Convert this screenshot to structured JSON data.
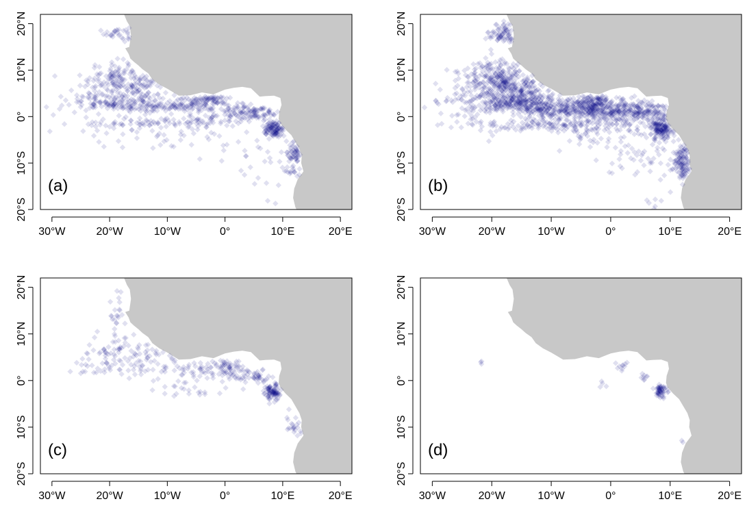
{
  "figure": {
    "colors": {
      "land": "#c8c8c8",
      "ocean": "#ffffff",
      "points": "#000080",
      "axis": "#000000"
    },
    "marker": "diamond",
    "x_ticks": [
      {
        "value": -30,
        "label": "30°W"
      },
      {
        "value": -20,
        "label": "20°W"
      },
      {
        "value": -10,
        "label": "10°W"
      },
      {
        "value": 0,
        "label": "0°"
      },
      {
        "value": 10,
        "label": "10°E"
      },
      {
        "value": 20,
        "label": "20°E"
      }
    ],
    "y_ticks": [
      {
        "value": 20,
        "label": "20°N"
      },
      {
        "value": 10,
        "label": "10°N"
      },
      {
        "value": 0,
        "label": "0°"
      },
      {
        "value": -10,
        "label": "10°S"
      },
      {
        "value": -20,
        "label": "20°S"
      }
    ],
    "xlim": [
      -32,
      22
    ],
    "ylim": [
      -20,
      22
    ],
    "coastline": [
      [
        -17.5,
        22
      ],
      [
        -17.0,
        20.5
      ],
      [
        -16.5,
        19.5
      ],
      [
        -16.3,
        17.5
      ],
      [
        -16.6,
        15.0
      ],
      [
        -17.3,
        14.7
      ],
      [
        -16.7,
        13.5
      ],
      [
        -16.4,
        12.5
      ],
      [
        -15.8,
        11.8
      ],
      [
        -15.0,
        11.0
      ],
      [
        -14.3,
        10.2
      ],
      [
        -13.3,
        9.3
      ],
      [
        -12.6,
        8.0
      ],
      [
        -11.4,
        6.9
      ],
      [
        -10.0,
        6.0
      ],
      [
        -8.0,
        4.5
      ],
      [
        -6.0,
        4.6
      ],
      [
        -4.0,
        5.2
      ],
      [
        -2.0,
        4.8
      ],
      [
        0.0,
        5.8
      ],
      [
        1.5,
        6.2
      ],
      [
        3.0,
        6.4
      ],
      [
        4.5,
        6.1
      ],
      [
        6.0,
        4.3
      ],
      [
        7.0,
        4.4
      ],
      [
        8.5,
        4.5
      ],
      [
        9.6,
        4.0
      ],
      [
        9.8,
        2.5
      ],
      [
        9.4,
        1.0
      ],
      [
        9.3,
        -0.5
      ],
      [
        9.6,
        -1.5
      ],
      [
        10.5,
        -2.8
      ],
      [
        11.5,
        -4.0
      ],
      [
        12.2,
        -5.5
      ],
      [
        12.9,
        -7.0
      ],
      [
        13.3,
        -8.5
      ],
      [
        13.2,
        -10.0
      ],
      [
        13.6,
        -11.8
      ],
      [
        12.6,
        -13.5
      ],
      [
        12.0,
        -15.5
      ],
      [
        11.8,
        -17.5
      ],
      [
        12.2,
        -19.5
      ],
      [
        12.6,
        -20.5
      ]
    ],
    "panels": [
      {
        "label": "(a)",
        "opacity": 0.12,
        "clusters": [
          {
            "lon": -18.5,
            "lat": 18.0,
            "slon": 1.2,
            "slat": 0.9,
            "n": 30
          },
          {
            "lon": -19.0,
            "lat": 8.0,
            "slon": 3.0,
            "slat": 2.0,
            "n": 140
          },
          {
            "lon": -14.0,
            "lat": 6.5,
            "slon": 2.0,
            "slat": 1.0,
            "n": 50
          },
          {
            "lon": -18.0,
            "lat": 3.2,
            "slon": 4.5,
            "slat": 0.9,
            "n": 140
          },
          {
            "lon": -9.0,
            "lat": 2.0,
            "slon": 4.5,
            "slat": 0.7,
            "n": 110
          },
          {
            "lon": -3.0,
            "lat": 3.8,
            "slon": 2.0,
            "slat": 0.6,
            "n": 70
          },
          {
            "lon": 2.0,
            "lat": 1.5,
            "slon": 2.5,
            "slat": 1.2,
            "n": 70
          },
          {
            "lon": 6.0,
            "lat": 0.8,
            "slon": 1.5,
            "slat": 0.8,
            "n": 50
          },
          {
            "lon": 8.5,
            "lat": -2.8,
            "slon": 0.9,
            "slat": 1.0,
            "n": 110
          },
          {
            "lon": 12.0,
            "lat": -9.0,
            "slon": 0.8,
            "slat": 2.2,
            "n": 80
          },
          {
            "lon": -14.0,
            "lat": -1.5,
            "slon": 5.0,
            "slat": 0.7,
            "n": 60
          },
          {
            "lon": -3.0,
            "lat": -1.0,
            "slon": 4.0,
            "slat": 0.8,
            "n": 50
          },
          {
            "lon": -20.0,
            "lat": 0.0,
            "slon": 6.0,
            "slat": 3.5,
            "n": 40
          },
          {
            "lon": 4.0,
            "lat": -8.0,
            "slon": 3.5,
            "slat": 3.5,
            "n": 25
          },
          {
            "lon": 8.0,
            "lat": -16.0,
            "slon": 1.5,
            "slat": 3.0,
            "n": 8
          },
          {
            "lon": -8.0,
            "lat": -4.0,
            "slon": 6.0,
            "slat": 2.0,
            "n": 25
          }
        ]
      },
      {
        "label": "(b)",
        "opacity": 0.12,
        "clusters": [
          {
            "lon": -18.0,
            "lat": 18.0,
            "slon": 1.2,
            "slat": 1.2,
            "n": 80
          },
          {
            "lon": -19.5,
            "lat": 8.0,
            "slon": 3.0,
            "slat": 2.2,
            "n": 280
          },
          {
            "lon": -14.5,
            "lat": 6.0,
            "slon": 2.0,
            "slat": 1.2,
            "n": 100
          },
          {
            "lon": -17.0,
            "lat": 3.0,
            "slon": 5.0,
            "slat": 1.0,
            "n": 260
          },
          {
            "lon": -9.0,
            "lat": 1.5,
            "slon": 4.0,
            "slat": 1.0,
            "n": 200
          },
          {
            "lon": -3.0,
            "lat": 2.5,
            "slon": 2.2,
            "slat": 1.4,
            "n": 190
          },
          {
            "lon": 1.5,
            "lat": 1.0,
            "slon": 2.5,
            "slat": 1.6,
            "n": 190
          },
          {
            "lon": 6.0,
            "lat": 1.2,
            "slon": 1.5,
            "slat": 1.0,
            "n": 90
          },
          {
            "lon": 8.5,
            "lat": -2.5,
            "slon": 0.9,
            "slat": 1.2,
            "n": 160
          },
          {
            "lon": 12.0,
            "lat": -10.0,
            "slon": 0.8,
            "slat": 2.0,
            "n": 120
          },
          {
            "lon": -12.0,
            "lat": -1.5,
            "slon": 5.0,
            "slat": 0.8,
            "n": 110
          },
          {
            "lon": -3.0,
            "lat": -3.0,
            "slon": 4.0,
            "slat": 1.5,
            "n": 70
          },
          {
            "lon": 5.0,
            "lat": -7.0,
            "slon": 3.0,
            "slat": 2.5,
            "n": 50
          },
          {
            "lon": -22.0,
            "lat": 1.0,
            "slon": 4.0,
            "slat": 3.0,
            "n": 50
          },
          {
            "lon": 8.0,
            "lat": -16.0,
            "slon": 1.5,
            "slat": 3.0,
            "n": 10
          }
        ]
      },
      {
        "label": "(c)",
        "opacity": 0.12,
        "clusters": [
          {
            "lon": -18.5,
            "lat": 15.0,
            "slon": 1.0,
            "slat": 3.0,
            "n": 20
          },
          {
            "lon": -19.0,
            "lat": 7.0,
            "slon": 2.5,
            "slat": 2.0,
            "n": 50
          },
          {
            "lon": -14.0,
            "lat": 5.0,
            "slon": 2.0,
            "slat": 1.5,
            "n": 25
          },
          {
            "lon": -15.0,
            "lat": 2.5,
            "slon": 5.0,
            "slat": 1.0,
            "n": 50
          },
          {
            "lon": -5.0,
            "lat": 2.5,
            "slon": 3.0,
            "slat": 1.2,
            "n": 40
          },
          {
            "lon": 0.5,
            "lat": 2.5,
            "slon": 1.5,
            "slat": 1.2,
            "n": 60
          },
          {
            "lon": 5.0,
            "lat": 0.8,
            "slon": 1.8,
            "slat": 0.8,
            "n": 45
          },
          {
            "lon": 8.3,
            "lat": -2.5,
            "slon": 0.7,
            "slat": 1.0,
            "n": 90
          },
          {
            "lon": 12.0,
            "lat": -9.5,
            "slon": 0.7,
            "slat": 1.8,
            "n": 25
          },
          {
            "lon": -8.0,
            "lat": -1.5,
            "slon": 4.0,
            "slat": 1.0,
            "n": 25
          },
          {
            "lon": -22.0,
            "lat": 3.0,
            "slon": 3.0,
            "slat": 1.5,
            "n": 10
          }
        ]
      },
      {
        "label": "(d)",
        "opacity": 0.12,
        "clusters": [
          {
            "lon": -22.0,
            "lat": 3.8,
            "slon": 0.3,
            "slat": 0.3,
            "n": 3
          },
          {
            "lon": 2.0,
            "lat": 3.0,
            "slon": 0.7,
            "slat": 0.5,
            "n": 10
          },
          {
            "lon": 5.5,
            "lat": 0.8,
            "slon": 0.7,
            "slat": 0.5,
            "n": 8
          },
          {
            "lon": -1.5,
            "lat": -0.8,
            "slon": 0.4,
            "slat": 0.4,
            "n": 4
          },
          {
            "lon": 8.3,
            "lat": -2.5,
            "slon": 0.5,
            "slat": 0.8,
            "n": 55
          },
          {
            "lon": 12.0,
            "lat": -13.0,
            "slon": 0.3,
            "slat": 0.4,
            "n": 2
          }
        ]
      }
    ]
  }
}
